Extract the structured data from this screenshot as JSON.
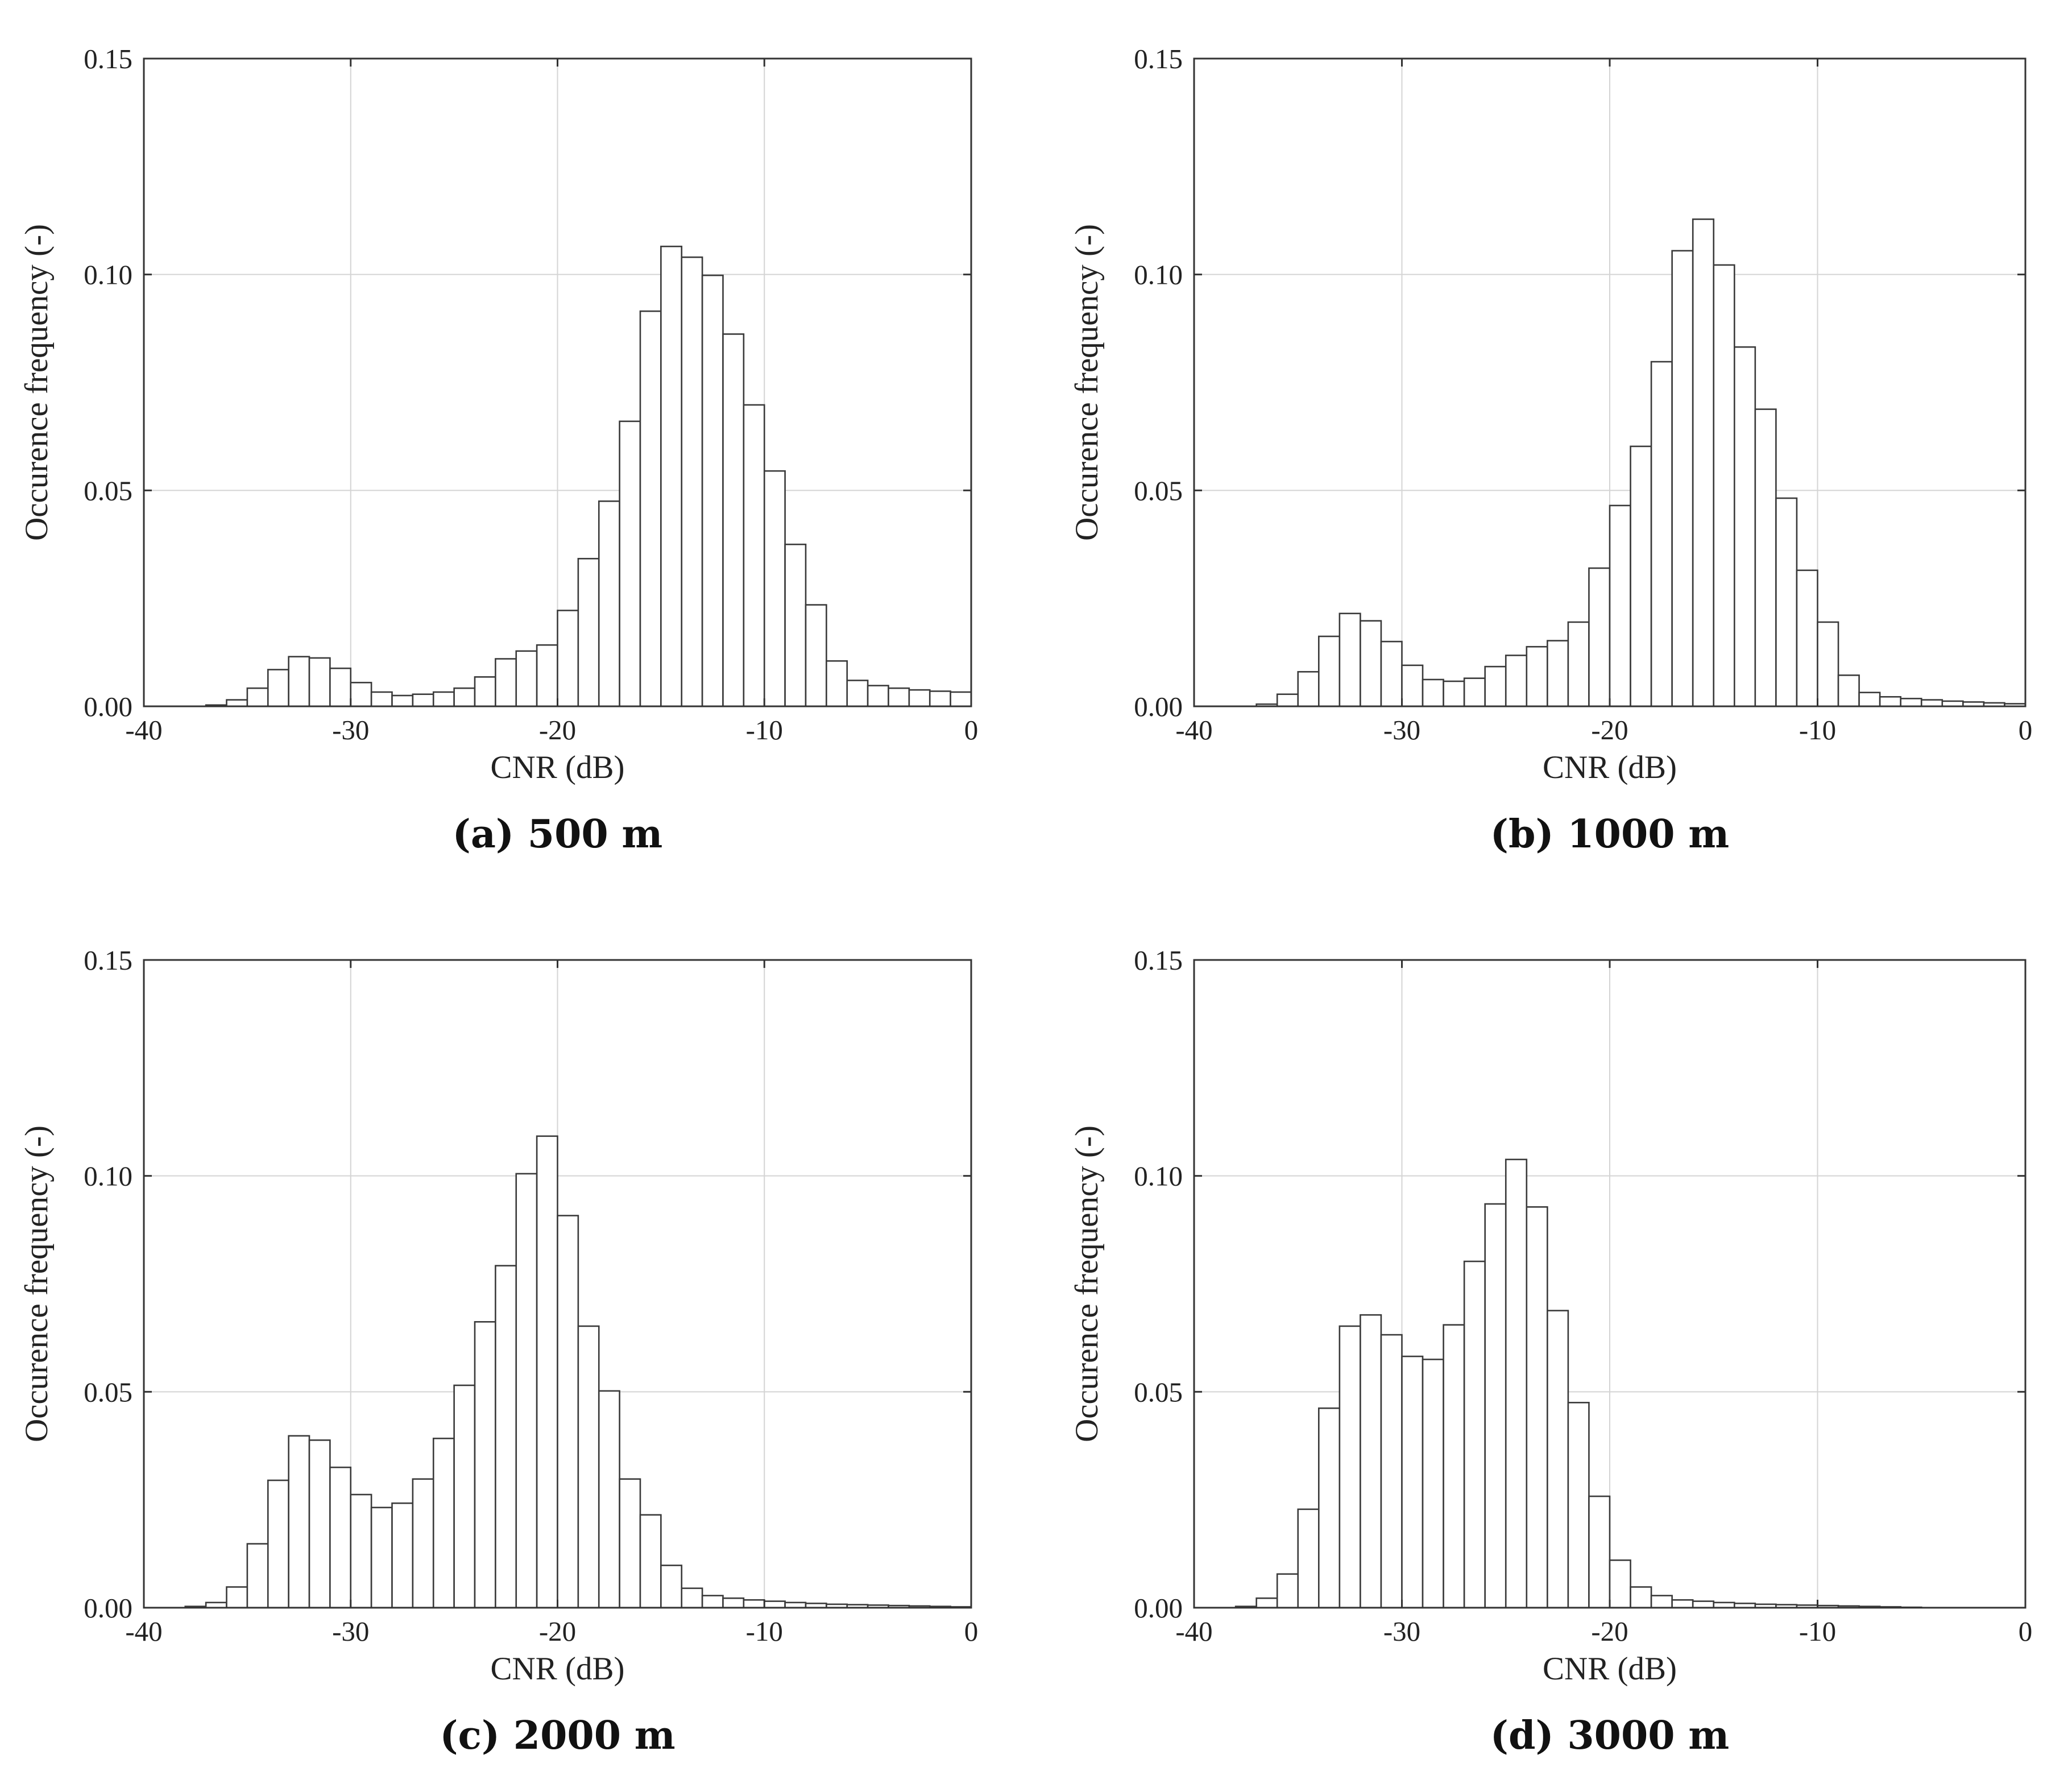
{
  "chart_data": [
    {
      "type": "bar",
      "caption": "(a) 500 m",
      "xlabel": "CNR (dB)",
      "ylabel": "Occurence frequency (-)",
      "xlim": [
        -40,
        0
      ],
      "ylim": [
        0,
        0.15
      ],
      "xticks": [
        -40,
        -30,
        -20,
        -10,
        0
      ],
      "xtick_labels": [
        "-40",
        "-30",
        "-20",
        "-10",
        "0"
      ],
      "yticks": [
        0,
        0.05,
        0.1,
        0.15
      ],
      "ytick_labels": [
        "0.00",
        "0.05",
        "0.10",
        "0.15"
      ],
      "grid": true,
      "bin_width": 1,
      "bin_edges_start": -40,
      "values": [
        0,
        0,
        0,
        0.0003,
        0.0015,
        0.0042,
        0.0085,
        0.0115,
        0.0112,
        0.0088,
        0.0055,
        0.0033,
        0.0025,
        0.0028,
        0.0033,
        0.0042,
        0.0068,
        0.011,
        0.0128,
        0.0142,
        0.0222,
        0.0342,
        0.0475,
        0.066,
        0.0915,
        0.1065,
        0.104,
        0.0998,
        0.0862,
        0.0698,
        0.0545,
        0.0375,
        0.0235,
        0.0105,
        0.006,
        0.0048,
        0.0042,
        0.0038,
        0.0035,
        0.0033
      ]
    },
    {
      "type": "bar",
      "caption": "(b) 1000 m",
      "xlabel": "CNR (dB)",
      "ylabel": "Occurence frequency (-)",
      "xlim": [
        -40,
        0
      ],
      "ylim": [
        0,
        0.15
      ],
      "xticks": [
        -40,
        -30,
        -20,
        -10,
        0
      ],
      "xtick_labels": [
        "-40",
        "-30",
        "-20",
        "-10",
        "0"
      ],
      "yticks": [
        0,
        0.05,
        0.1,
        0.15
      ],
      "ytick_labels": [
        "0.00",
        "0.05",
        "0.10",
        "0.15"
      ],
      "grid": true,
      "bin_width": 1,
      "bin_edges_start": -40,
      "values": [
        0,
        0,
        0,
        0.0005,
        0.0028,
        0.008,
        0.0162,
        0.0215,
        0.0198,
        0.015,
        0.0095,
        0.0062,
        0.0058,
        0.0065,
        0.0092,
        0.0118,
        0.0138,
        0.0152,
        0.0195,
        0.032,
        0.0465,
        0.0602,
        0.0798,
        0.1055,
        0.1128,
        0.1022,
        0.0832,
        0.0688,
        0.0482,
        0.0315,
        0.0195,
        0.0072,
        0.0032,
        0.0022,
        0.0018,
        0.0015,
        0.0012,
        0.001,
        0.0008,
        0.0006
      ]
    },
    {
      "type": "bar",
      "caption": "(c) 2000 m",
      "xlabel": "CNR (dB)",
      "ylabel": "Occurence frequency (-)",
      "xlim": [
        -40,
        0
      ],
      "ylim": [
        0,
        0.15
      ],
      "xticks": [
        -40,
        -30,
        -20,
        -10,
        0
      ],
      "xtick_labels": [
        "-40",
        "-30",
        "-20",
        "-10",
        "0"
      ],
      "yticks": [
        0,
        0.05,
        0.1,
        0.15
      ],
      "ytick_labels": [
        "0.00",
        "0.05",
        "0.10",
        "0.15"
      ],
      "grid": true,
      "bin_width": 1,
      "bin_edges_start": -40,
      "values": [
        0,
        0,
        0.0003,
        0.0012,
        0.0048,
        0.0148,
        0.0295,
        0.0398,
        0.0388,
        0.0325,
        0.0262,
        0.0232,
        0.0242,
        0.0298,
        0.0392,
        0.0515,
        0.0662,
        0.0792,
        0.1005,
        0.1092,
        0.0908,
        0.0652,
        0.0502,
        0.0298,
        0.0215,
        0.0098,
        0.0045,
        0.0028,
        0.0022,
        0.0018,
        0.0015,
        0.0012,
        0.001,
        0.0008,
        0.0007,
        0.0006,
        0.0005,
        0.0004,
        0.0003,
        0.0002
      ]
    },
    {
      "type": "bar",
      "caption": "(d) 3000 m",
      "xlabel": "CNR (dB)",
      "ylabel": "Occurence frequency (-)",
      "xlim": [
        -40,
        0
      ],
      "ylim": [
        0,
        0.15
      ],
      "xticks": [
        -40,
        -30,
        -20,
        -10,
        0
      ],
      "xtick_labels": [
        "-40",
        "-30",
        "-20",
        "-10",
        "0"
      ],
      "yticks": [
        0,
        0.05,
        0.1,
        0.15
      ],
      "ytick_labels": [
        "0.00",
        "0.05",
        "0.10",
        "0.15"
      ],
      "grid": true,
      "bin_width": 1,
      "bin_edges_start": -40,
      "values": [
        0,
        0,
        0.0003,
        0.0022,
        0.0078,
        0.0228,
        0.0462,
        0.0652,
        0.0678,
        0.0632,
        0.0582,
        0.0575,
        0.0655,
        0.0802,
        0.0935,
        0.1038,
        0.0928,
        0.0688,
        0.0475,
        0.0258,
        0.011,
        0.0048,
        0.0028,
        0.0018,
        0.0015,
        0.0012,
        0.001,
        0.0008,
        0.0007,
        0.0006,
        0.0005,
        0.0004,
        0.0003,
        0.0002,
        0.0001,
        0,
        0,
        0,
        0,
        0
      ]
    }
  ]
}
